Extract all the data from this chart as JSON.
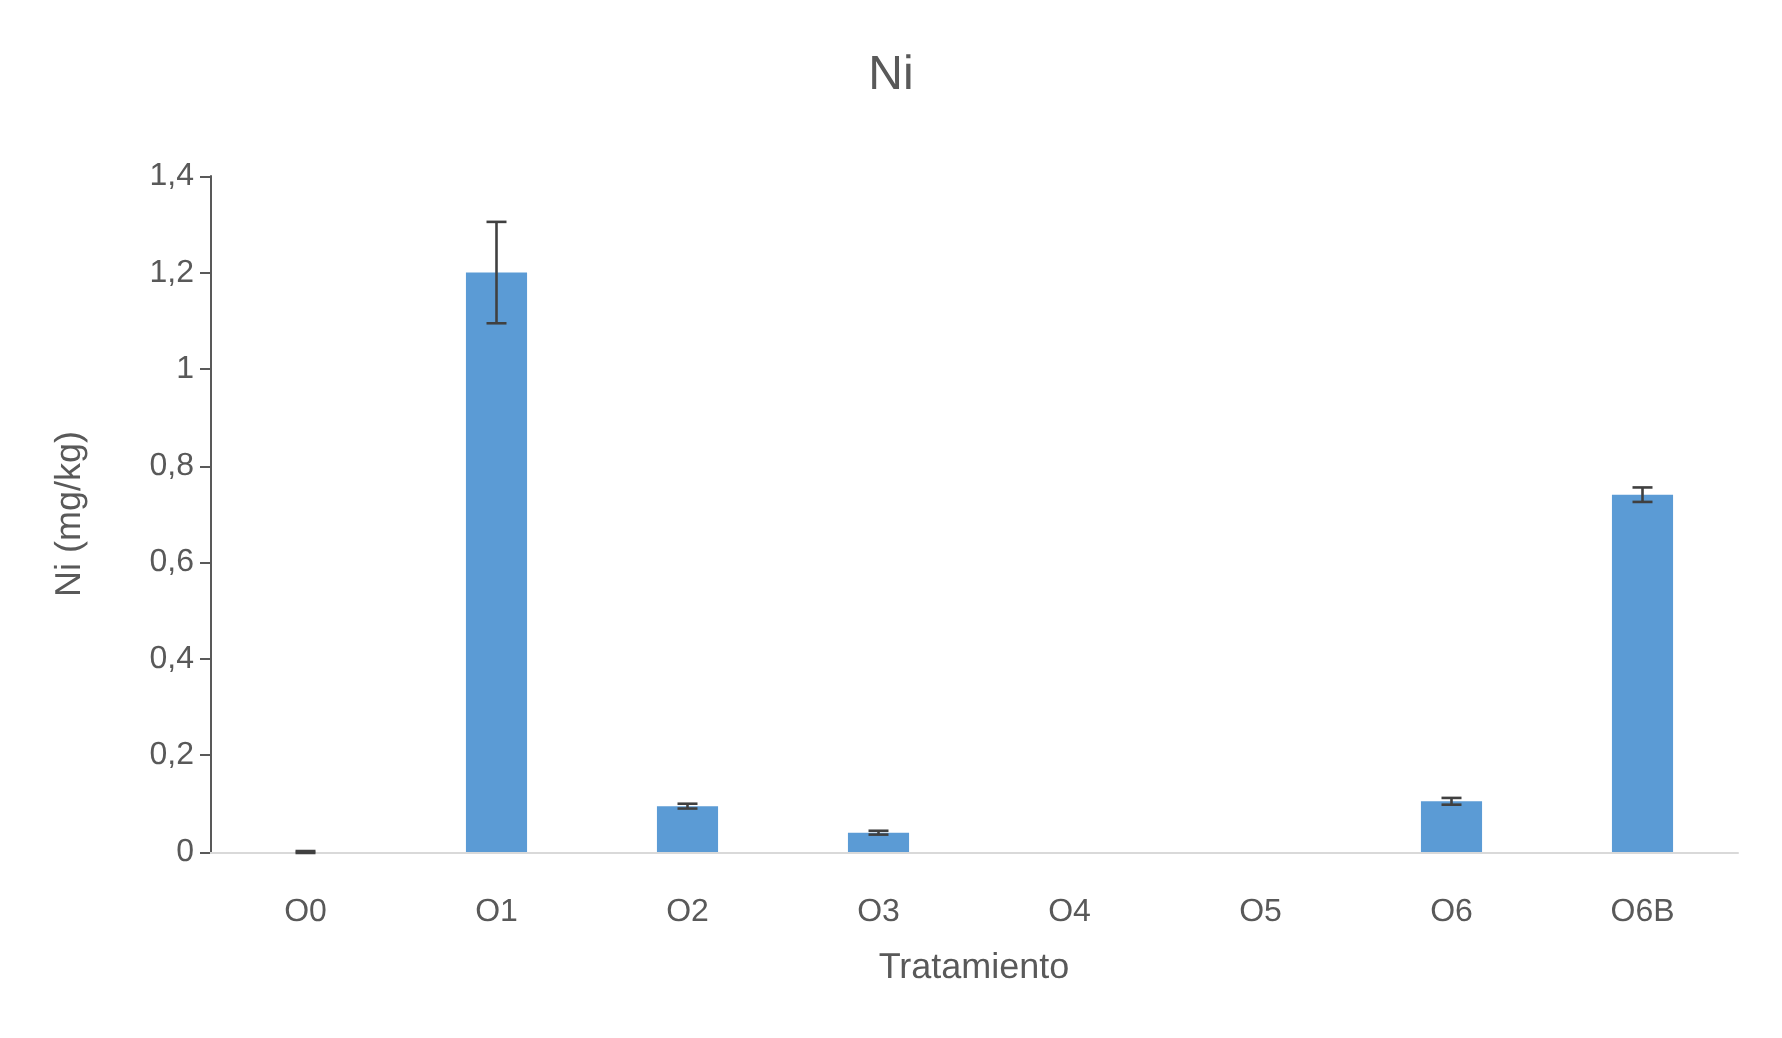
{
  "chart_data": {
    "type": "bar",
    "title": "Ni",
    "xlabel": "Tratamiento",
    "ylabel": "Ni (mg/kg)",
    "categories": [
      "O0",
      "O1",
      "O2",
      "O3",
      "O4",
      "O5",
      "O6",
      "O6B"
    ],
    "values": [
      0,
      1.2,
      0.095,
      0.04,
      0,
      0,
      0.105,
      0.74
    ],
    "errors": [
      0.002,
      0.105,
      0.005,
      0.004,
      null,
      null,
      0.007,
      0.015
    ],
    "color": "#5b9bd5",
    "ylim": [
      0,
      1.4
    ],
    "yticks": [
      0,
      {
        "value": 0.2,
        "label": "0,2"
      },
      {
        "value": 0.4,
        "label": "0,4"
      },
      {
        "value": 0.6,
        "label": "0,6"
      },
      {
        "value": 0.8,
        "label": "0,8"
      },
      1,
      {
        "value": 1.2,
        "label": "1,2"
      },
      {
        "value": 1.4,
        "label": "1,4"
      }
    ],
    "grid": false
  }
}
